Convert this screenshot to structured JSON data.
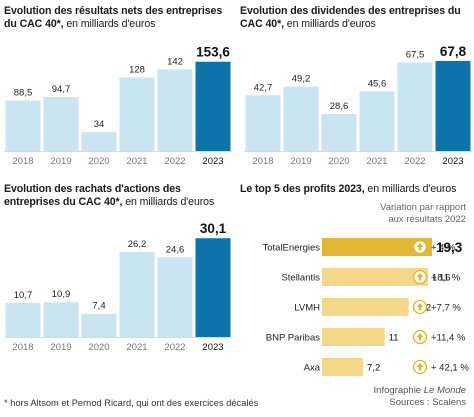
{
  "chart_data": [
    {
      "id": "results",
      "type": "bar",
      "title": "Evolution des résultats nets des entreprises du CAC 40*,",
      "subtitle": "en milliards d'euros",
      "categories": [
        "2018",
        "2019",
        "2020",
        "2021",
        "2022",
        "2023"
      ],
      "values": [
        88.5,
        94.7,
        34,
        128,
        142,
        153.6
      ],
      "value_labels": [
        "88,5",
        "94,7",
        "34",
        "128",
        "142",
        "153,6"
      ],
      "ylim": [
        0,
        160
      ],
      "colors": {
        "bar": "#c9e5f1",
        "highlight": "#0c74ab",
        "gridline": "#d8d8d8"
      }
    },
    {
      "id": "dividends",
      "type": "bar",
      "title": "Evolution des dividendes des entreprises du CAC 40*,",
      "subtitle": "en milliards d'euros",
      "categories": [
        "2018",
        "2019",
        "2020",
        "2021",
        "2022",
        "2023"
      ],
      "values": [
        42.7,
        49.2,
        28.6,
        45.6,
        67.5,
        67.8
      ],
      "value_labels": [
        "42,7",
        "49,2",
        "28,6",
        "45,6",
        "67,5",
        "67,8"
      ],
      "ylim": [
        0,
        70
      ],
      "colors": {
        "bar": "#c9e5f1",
        "highlight": "#0c74ab",
        "gridline": "#d8d8d8"
      }
    },
    {
      "id": "buybacks",
      "type": "bar",
      "title": "Evolution des rachats d'actions des entreprises du CAC 40*,",
      "subtitle": "en milliards d'euros",
      "categories": [
        "2018",
        "2019",
        "2020",
        "2021",
        "2022",
        "2023"
      ],
      "values": [
        10.7,
        10.9,
        7.4,
        26.2,
        24.6,
        30.1
      ],
      "value_labels": [
        "10,7",
        "10,9",
        "7,4",
        "26,2",
        "24,6",
        "30,1"
      ],
      "ylim": [
        0,
        32
      ],
      "colors": {
        "bar": "#c9e5f1",
        "highlight": "#0c74ab",
        "gridline": "#d8d8d8"
      }
    },
    {
      "id": "top5",
      "type": "bar",
      "orientation": "horizontal",
      "title": "Le top 5 des profits 2023,",
      "subtitle": "en milliards d'euros",
      "categories": [
        "TotalEnergies",
        "Stellantis",
        "LVMH",
        "BNP Paribas",
        "Axa"
      ],
      "values": [
        19.3,
        18.6,
        15.2,
        11,
        7.2
      ],
      "value_labels": [
        "19,3",
        "18,6",
        "15,2",
        "11",
        "7,2"
      ],
      "variation_labels": [
        "+ 4 %",
        "+ 11 %",
        "+7,7 %",
        "+11,4 %",
        "+ 42,1 %"
      ],
      "variation_header": [
        "Variation par rapport",
        "aux résultats 2022"
      ],
      "xlim": [
        0,
        20
      ],
      "variation_icon": "up-arrow-circle-icon",
      "colors": {
        "bar": "#f5d78a",
        "highlight": "#e4b732",
        "gridline": "#d8d8d8",
        "arrow": "#e0b22d"
      }
    }
  ],
  "footnote": "* hors Altsom et Pernod Ricard, qui ont des exercices décalés",
  "credit": {
    "line1_prefix": "Infographie ",
    "line1_italic": "Le Monde",
    "line2": "Sources : Scalens"
  }
}
